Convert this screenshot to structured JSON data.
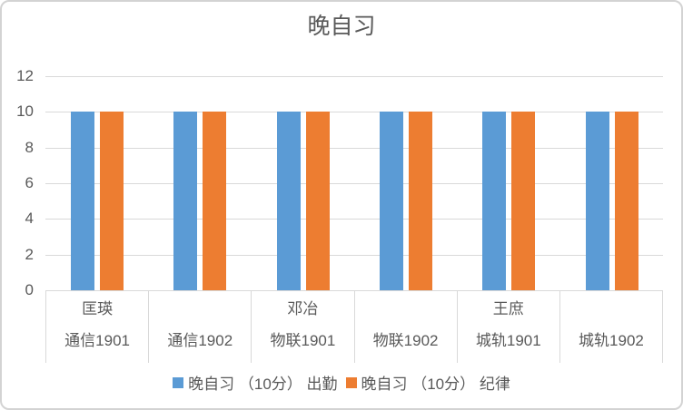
{
  "chart_data": {
    "type": "bar",
    "title": "晚自习",
    "categories": [
      {
        "name": "匡瑛",
        "class": "通信1901"
      },
      {
        "name": "",
        "class": "通信1902"
      },
      {
        "name": "邓冶",
        "class": "物联1901"
      },
      {
        "name": "",
        "class": "物联1902"
      },
      {
        "name": "王庶",
        "class": "城轨1901"
      },
      {
        "name": "",
        "class": "城轨1902"
      }
    ],
    "series": [
      {
        "slug": "attendance",
        "name": "晚自习 （10分） 出勤",
        "color": "#5B9BD5",
        "values": [
          10,
          10,
          10,
          10,
          10,
          10
        ]
      },
      {
        "slug": "discipline",
        "name": "晚自习 （10分） 纪律",
        "color": "#ED7D31",
        "values": [
          10,
          10,
          10,
          10,
          10,
          10
        ]
      }
    ],
    "ylim": [
      0,
      12
    ],
    "ytick_step": 2,
    "yticks": [
      0,
      2,
      4,
      6,
      8,
      10,
      12
    ],
    "grid": true,
    "legend_position": "bottom",
    "colors": {
      "text": "#595959",
      "gridline": "#D9D9D9",
      "chart_border": "#D3D3D3",
      "background": "#FFFFFF"
    }
  }
}
